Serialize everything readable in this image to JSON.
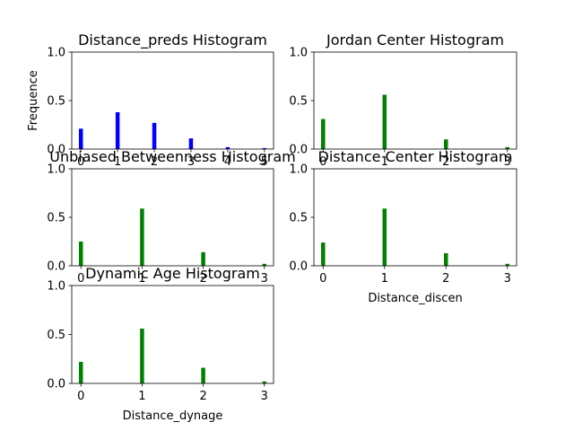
{
  "chart_data": [
    {
      "type": "bar",
      "title": "Distance_preds Histogram",
      "xlabel": "",
      "ylabel": "Frequence",
      "x": [
        0,
        1,
        2,
        3,
        4,
        5
      ],
      "values": [
        0.21,
        0.38,
        0.27,
        0.11,
        0.02,
        0.01
      ],
      "xticks": [
        "0",
        "1",
        "2",
        "3",
        "4",
        "5"
      ],
      "xlim": [
        -0.25,
        5.25
      ],
      "ylim": [
        0,
        1
      ],
      "yticks": [
        "0.0",
        "0.5",
        "1.0"
      ],
      "color": "#0000ff",
      "grid": false
    },
    {
      "type": "bar",
      "title": "Jordan Center Histogram",
      "xlabel": "",
      "ylabel": "",
      "x": [
        0,
        1,
        2,
        3
      ],
      "values": [
        0.31,
        0.56,
        0.1,
        0.02
      ],
      "xticks": [
        "0",
        "1",
        "2",
        "3"
      ],
      "xlim": [
        -0.15,
        3.15
      ],
      "ylim": [
        0,
        1
      ],
      "yticks": [
        "0.0",
        "0.5",
        "1.0"
      ],
      "color": "#008000",
      "grid": false
    },
    {
      "type": "bar",
      "title": "Unbiased Betweenness Histogram",
      "xlabel": "",
      "ylabel": "",
      "x": [
        0,
        1,
        2,
        3
      ],
      "values": [
        0.25,
        0.59,
        0.14,
        0.02
      ],
      "xticks": [
        "0",
        "1",
        "2",
        "3"
      ],
      "xlim": [
        -0.15,
        3.15
      ],
      "ylim": [
        0,
        1
      ],
      "yticks": [
        "0.0",
        "0.5",
        "1.0"
      ],
      "color": "#008000",
      "grid": false
    },
    {
      "type": "bar",
      "title": "Distance Center Histogram",
      "xlabel": "Distance_discen",
      "ylabel": "",
      "x": [
        0,
        1,
        2,
        3
      ],
      "values": [
        0.24,
        0.59,
        0.13,
        0.02
      ],
      "xticks": [
        "0",
        "1",
        "2",
        "3"
      ],
      "xlim": [
        -0.15,
        3.15
      ],
      "ylim": [
        0,
        1
      ],
      "yticks": [
        "0.0",
        "0.5",
        "1.0"
      ],
      "color": "#008000",
      "grid": false
    },
    {
      "type": "bar",
      "title": "Dynamic Age Histogram",
      "xlabel": "Distance_dynage",
      "ylabel": "",
      "x": [
        0,
        1,
        2,
        3
      ],
      "values": [
        0.22,
        0.56,
        0.16,
        0.02
      ],
      "xticks": [
        "0",
        "1",
        "2",
        "3"
      ],
      "xlim": [
        -0.15,
        3.15
      ],
      "ylim": [
        0,
        1
      ],
      "yticks": [
        "0.0",
        "0.5",
        "1.0"
      ],
      "color": "#008000",
      "grid": false
    }
  ]
}
